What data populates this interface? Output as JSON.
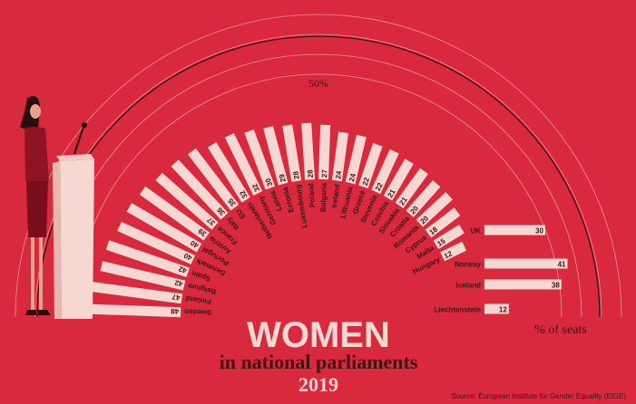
{
  "chart_data": {
    "type": "bar",
    "layout": "radial-semicircle",
    "title": "WOMEN",
    "subtitle": "in national parliaments",
    "year": "2019",
    "unit_label": "% of seats",
    "reference_label": "50%",
    "reference_value": 50,
    "source": "Source: European Institute for Gender Equality (EIGE)",
    "ylim": [
      0,
      50
    ],
    "categories": [
      "Sweden",
      "Finland",
      "Belgium",
      "Spain",
      "Denmark",
      "Portugal",
      "Austria",
      "France",
      "Italy",
      "EU",
      "Netherlands",
      "Germany",
      "Latvia",
      "Estonia",
      "Luxembourg",
      "Poland",
      "Bulgaria",
      "Ireland",
      "Lithuania",
      "Greece",
      "Slovenia",
      "Czechia",
      "Slovakia",
      "Croatia",
      "Romania",
      "Cyprus",
      "Malta",
      "Hungary"
    ],
    "values": [
      48,
      47,
      42,
      42,
      40,
      40,
      39,
      37,
      36,
      35,
      32,
      32,
      30,
      29,
      28,
      28,
      27,
      24,
      24,
      22,
      22,
      21,
      21,
      20,
      20,
      18,
      15,
      12
    ],
    "extra": [
      {
        "label": "UK",
        "value": 30
      },
      {
        "label": "Norway",
        "value": 41
      },
      {
        "label": "Iceland",
        "value": 38
      },
      {
        "label": "Liechtenstein",
        "value": 12
      }
    ]
  },
  "colors": {
    "background": "#d9293d",
    "bar": "#f7d7d2",
    "bar_text": "#3b1416",
    "label_text": "#3b1416",
    "arc_line": "#3b1416",
    "guide_arcs": "#f2aab0",
    "title_text": "#f7d7d2",
    "subtitle_text": "#3b1416"
  }
}
